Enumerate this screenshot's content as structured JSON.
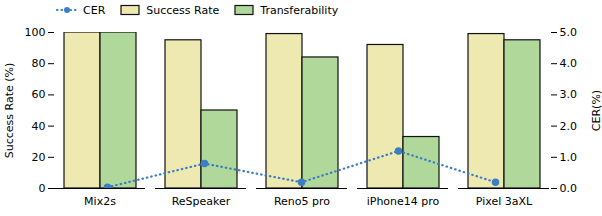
{
  "chart_data": {
    "type": "bar",
    "categories": [
      "Mix2s",
      "ReSpeaker",
      "Reno5 pro",
      "iPhone14 pro",
      "Pixel 3aXL"
    ],
    "series": [
      {
        "name": "CER",
        "type": "line",
        "axis": "y2",
        "color": "#3A7EC6",
        "line_style": "dotted",
        "marker": "o",
        "values": [
          0.04,
          0.8,
          0.2,
          1.2,
          0.2
        ]
      },
      {
        "name": "Success Rate",
        "type": "bar",
        "color": "#EDE9B0",
        "values": [
          100,
          95,
          99,
          92,
          99
        ]
      },
      {
        "name": "Transferability",
        "type": "bar",
        "color": "#B0D89A",
        "values": [
          100,
          50,
          84,
          33,
          95
        ]
      }
    ],
    "ylabel": "Success Rate (%)",
    "y2label": "CER(%)",
    "ylim": [
      0,
      100
    ],
    "yticks": [
      0,
      20,
      40,
      60,
      80,
      100
    ],
    "y2lim": [
      0,
      5
    ],
    "y2ticks": [
      0,
      1,
      2,
      3,
      4,
      5
    ],
    "legend": "upper left"
  }
}
